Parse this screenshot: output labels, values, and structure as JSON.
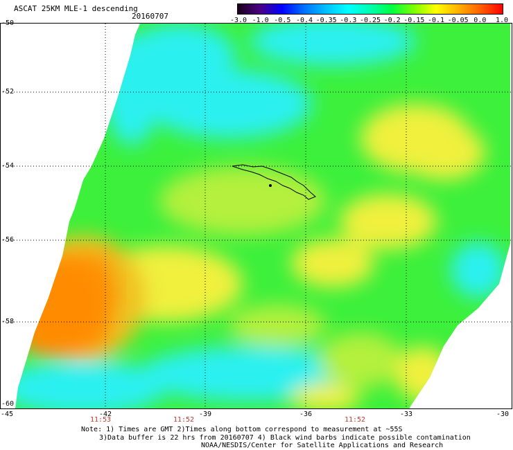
{
  "header": {
    "title": "ASCAT 25KM MLE-1 descending",
    "date": "20160707"
  },
  "colorbar": {
    "labels": [
      "-3.0",
      "-1.0",
      "-0.5",
      "-0.4",
      "-0.35",
      "-0.3",
      "-0.25",
      "-0.2",
      "-0.15",
      "-0.1",
      "-0.05",
      "0.0",
      "1.0"
    ],
    "colors": [
      "#1a001a",
      "#4b0082",
      "#0000ff",
      "#0070ff",
      "#00c0ff",
      "#00ffff",
      "#00ffb0",
      "#00ff40",
      "#80ff00",
      "#ffff00",
      "#ffb000",
      "#ff6000",
      "#ff0000"
    ]
  },
  "axes": {
    "lat_labels": [
      "-50",
      "-52",
      "-54",
      "-56",
      "-58",
      "-60"
    ],
    "lon_labels": [
      "-45",
      "-42",
      "-39",
      "-36",
      "-33",
      "-30"
    ],
    "times": [
      "11:53",
      "11:52",
      "11:52"
    ]
  },
  "field_colors": {
    "cyan": "#29f0f0",
    "green": "#3cf03c",
    "yellowgreen": "#b4f03c",
    "yellow": "#f0f03c",
    "orange": "#ff8c00",
    "land_outline": "#000000"
  },
  "notes": {
    "line1": "Note: 1) Times are GMT 2)Times along bottom correspond to measurement at ~55S",
    "line2": "3)Data buffer is 22 hrs from 20160707 4) Black wind barbs indicate possible contamination",
    "line3": "NOAA/NESDIS/Center for Satellite Applications and Research"
  }
}
